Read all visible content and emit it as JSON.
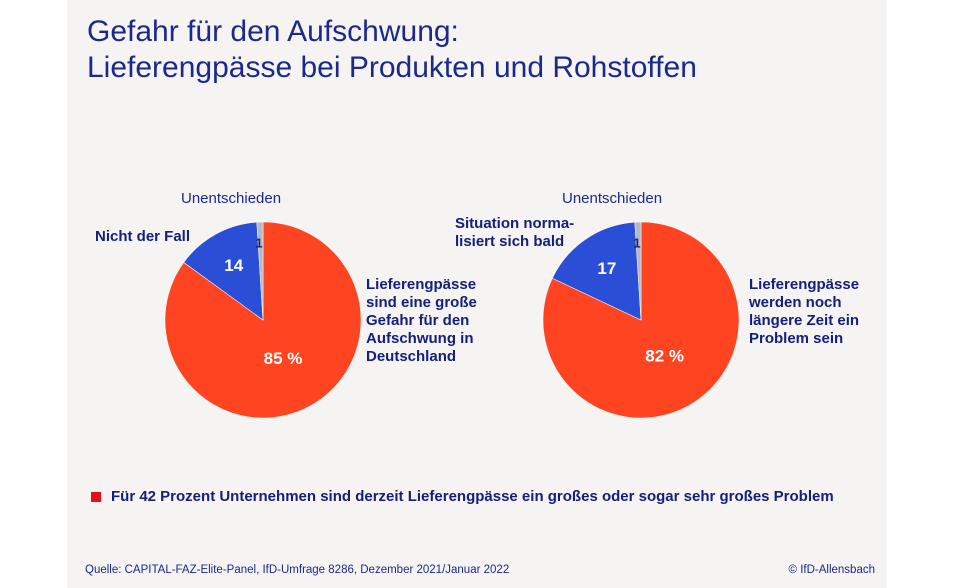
{
  "title": {
    "line1": "Gefahr für den Aufschwung:",
    "line2": "Lieferengpässe bei Produkten und Rohstoffen"
  },
  "colors": {
    "primary": "#ff4422",
    "secondary": "#2a4fd6",
    "undecided": "#b8b8c4",
    "text": "#1b2a8a",
    "bullet": "#e3101a"
  },
  "chart_data": [
    {
      "type": "pie",
      "slices": [
        {
          "name": "Lieferengpässe sind eine große Gefahr für den Aufschwung in Deutschland",
          "value": 85,
          "label": "85 %"
        },
        {
          "name": "Nicht der Fall",
          "value": 14,
          "label": "14"
        },
        {
          "name": "Unentschieden",
          "value": 1,
          "label": "1"
        }
      ],
      "labels": {
        "undecided": "Unentschieden",
        "secondary": "Nicht der Fall",
        "primary": "Lieferengpässe\nsind eine große\nGefahr für den\nAufschwung in\nDeutschland"
      }
    },
    {
      "type": "pie",
      "slices": [
        {
          "name": "Lieferengpässe werden noch längere Zeit ein Problem sein",
          "value": 82,
          "label": "82 %"
        },
        {
          "name": "Situation normalisiert sich bald",
          "value": 17,
          "label": "17"
        },
        {
          "name": "Unentschieden",
          "value": 1,
          "label": "1"
        }
      ],
      "labels": {
        "undecided": "Unentschieden",
        "secondary": "Situation norma-\nlisiert sich bald",
        "primary": "Lieferengpässe\nwerden noch\nlängere Zeit ein\nProblem sein"
      }
    }
  ],
  "note": "Für 42 Prozent Unternehmen sind derzeit Lieferengpässe ein großes oder sogar sehr großes Problem",
  "footer": {
    "source": "Quelle: CAPITAL-FAZ-Elite-Panel, IfD-Umfrage 8286, Dezember 2021/Januar 2022",
    "copyright": "© IfD-Allensbach"
  }
}
